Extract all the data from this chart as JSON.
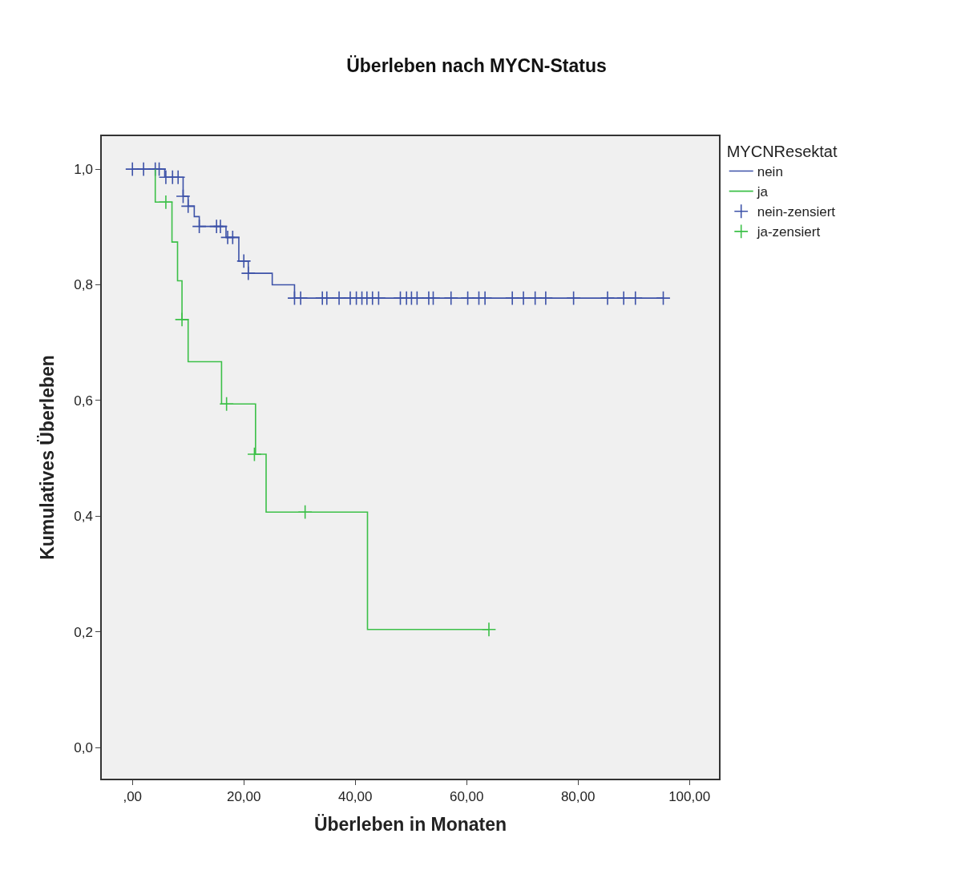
{
  "chart_data": {
    "type": "step",
    "title": "Überleben nach MYCN-Status",
    "xlabel": "Überleben in Monaten",
    "ylabel": "Kumulatives Überleben",
    "legend_title": "MYCNResektat",
    "legend": "right",
    "series": [
      {
        "name": "nein",
        "color": "#3d52a8",
        "x": [
          0,
          5.8,
          9.1,
          10.0,
          11.1,
          12.0,
          16.8,
          19.1,
          20.8,
          25.1,
          29.1,
          95.3
        ],
        "values": [
          1.0,
          0.986,
          0.953,
          0.936,
          0.918,
          0.901,
          0.882,
          0.841,
          0.82,
          0.8,
          0.777,
          0.777
        ]
      },
      {
        "name": "ja",
        "color": "#3cc048",
        "x": [
          4.1,
          4.1,
          7.1,
          8.1,
          8.9,
          10.0,
          16.0,
          22.1,
          24.0,
          42.2,
          64.0
        ],
        "values": [
          1.0,
          0.943,
          0.874,
          0.807,
          0.74,
          0.667,
          0.594,
          0.507,
          0.407,
          0.204,
          0.204
        ]
      },
      {
        "name": "nein-zensiert",
        "type": "scatter",
        "marker": "cross",
        "color": "#3d52a8",
        "x": [
          0.0,
          2.0,
          4.1,
          4.8,
          6.0,
          7.2,
          8.2,
          9.1,
          10.0,
          12.0,
          15.1,
          15.8,
          17.1,
          18.0,
          20.0,
          20.8,
          29.1,
          30.2,
          34.1,
          34.9,
          37.1,
          39.1,
          40.2,
          41.2,
          42.1,
          43.1,
          44.2,
          48.1,
          49.2,
          50.1,
          51.1,
          53.2,
          54.0,
          57.2,
          60.2,
          62.2,
          63.3,
          68.2,
          70.2,
          72.3,
          74.2,
          79.2,
          85.3,
          88.2,
          90.3,
          95.3
        ],
        "values": [
          1.0,
          1.0,
          1.0,
          1.0,
          0.986,
          0.986,
          0.986,
          0.953,
          0.936,
          0.901,
          0.901,
          0.901,
          0.882,
          0.882,
          0.841,
          0.82,
          0.777,
          0.777,
          0.777,
          0.777,
          0.777,
          0.777,
          0.777,
          0.777,
          0.777,
          0.777,
          0.777,
          0.777,
          0.777,
          0.777,
          0.777,
          0.777,
          0.777,
          0.777,
          0.777,
          0.777,
          0.777,
          0.777,
          0.777,
          0.777,
          0.777,
          0.777,
          0.777,
          0.777,
          0.777,
          0.777
        ]
      },
      {
        "name": "ja-zensiert",
        "type": "scatter",
        "marker": "cross",
        "color": "#3cc048",
        "x": [
          6.0,
          8.9,
          16.9,
          21.9,
          31.0,
          64.0
        ],
        "values": [
          0.943,
          0.74,
          0.594,
          0.507,
          0.407,
          0.204
        ]
      }
    ],
    "xlim": [
      -5.5,
      105.3
    ],
    "ylim": [
      -0.054,
      1.057
    ],
    "xticks": [
      {
        "value": 0,
        "label": ",00"
      },
      {
        "value": 20,
        "label": "20,00"
      },
      {
        "value": 40,
        "label": "40,00"
      },
      {
        "value": 60,
        "label": "60,00"
      },
      {
        "value": 80,
        "label": "80,00"
      },
      {
        "value": 100,
        "label": "100,00"
      }
    ],
    "yticks": [
      {
        "value": 0,
        "label": "0,0"
      },
      {
        "value": 0.2,
        "label": "0,2"
      },
      {
        "value": 0.4,
        "label": "0,4"
      },
      {
        "value": 0.6,
        "label": "0,6"
      },
      {
        "value": 0.8,
        "label": "0,8"
      },
      {
        "value": 1.0,
        "label": "1,0"
      }
    ],
    "grid": false
  }
}
